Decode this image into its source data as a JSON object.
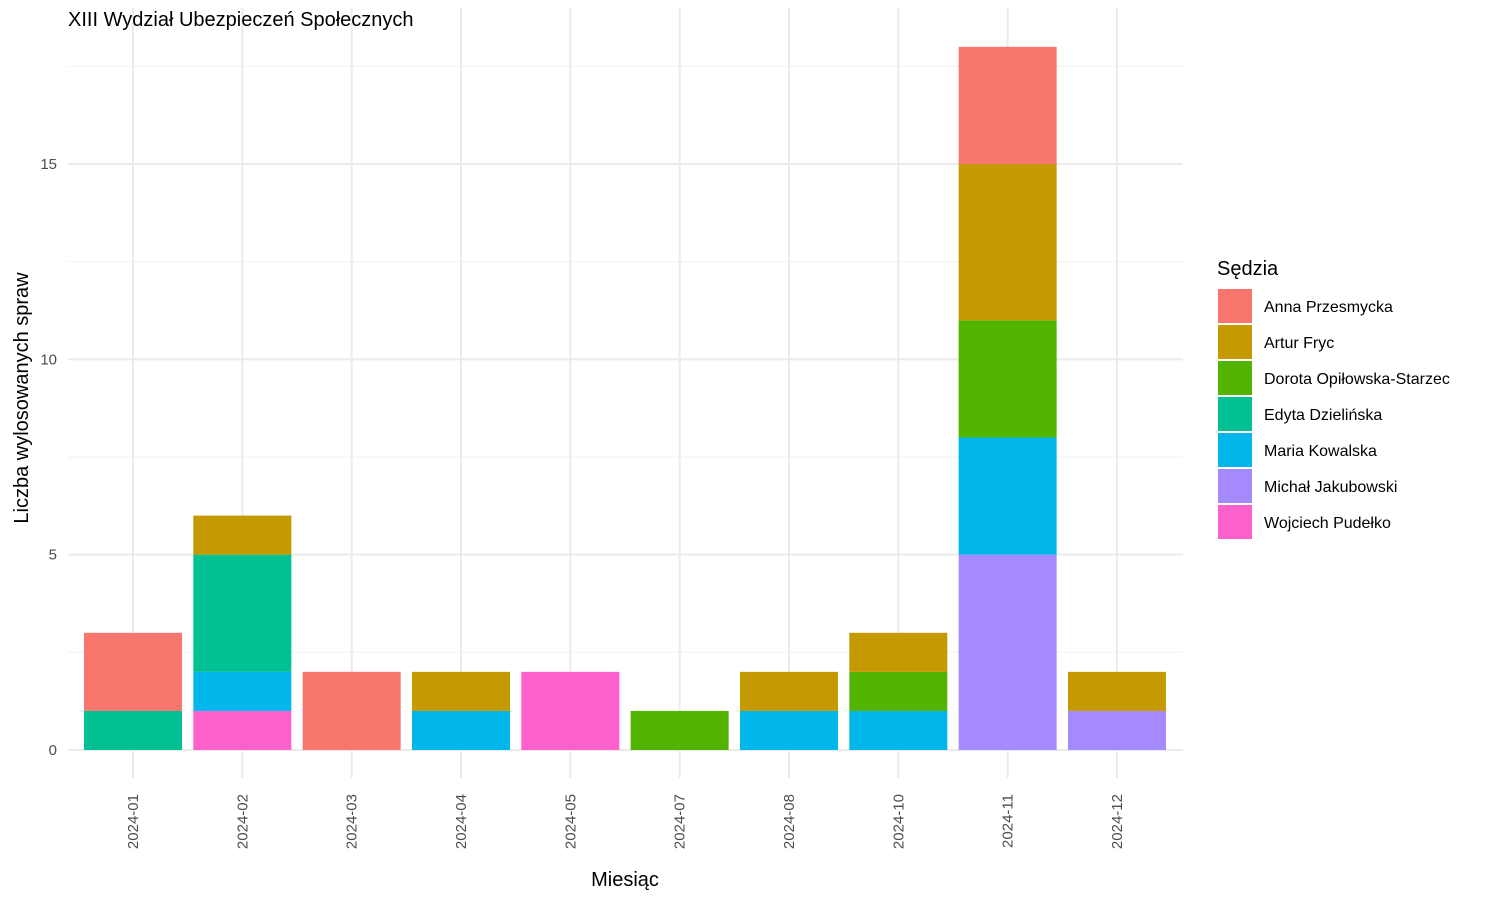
{
  "chart_data": {
    "type": "bar",
    "stacked": true,
    "title": "XIII Wydział Ubezpieczeń Społecznych",
    "xlabel": "Miesiąc",
    "ylabel": "Liczba wylosowanych spraw",
    "ylim": [
      0,
      18
    ],
    "yticks": [
      0,
      5,
      10,
      15
    ],
    "grid": true,
    "legend": {
      "title": "Sędzia",
      "position": "right"
    },
    "categories": [
      "2024-01",
      "2024-02",
      "2024-03",
      "2024-04",
      "2024-05",
      "2024-07",
      "2024-08",
      "2024-10",
      "2024-11",
      "2024-12"
    ],
    "series": [
      {
        "name": "Wojciech Pudełko",
        "color": "#FF61CC",
        "values": [
          0,
          1,
          0,
          0,
          2,
          0,
          0,
          0,
          0,
          0
        ]
      },
      {
        "name": "Michał Jakubowski",
        "color": "#A58AFF",
        "values": [
          0,
          0,
          0,
          0,
          0,
          0,
          0,
          0,
          5,
          1
        ]
      },
      {
        "name": "Maria Kowalska",
        "color": "#00B6EB",
        "values": [
          0,
          1,
          0,
          1,
          0,
          0,
          1,
          1,
          3,
          0
        ]
      },
      {
        "name": "Edyta Dzielińska",
        "color": "#00C094",
        "values": [
          1,
          3,
          0,
          0,
          0,
          0,
          0,
          0,
          0,
          0
        ]
      },
      {
        "name": "Dorota Opiłowska-Starzec",
        "color": "#53B400",
        "values": [
          0,
          0,
          0,
          0,
          0,
          1,
          0,
          1,
          3,
          0
        ]
      },
      {
        "name": "Artur Fryc",
        "color": "#C49A00",
        "values": [
          0,
          1,
          0,
          1,
          0,
          0,
          1,
          1,
          4,
          1
        ]
      },
      {
        "name": "Anna Przesmycka",
        "color": "#F8766D",
        "values": [
          2,
          0,
          2,
          0,
          0,
          0,
          0,
          0,
          3,
          0
        ]
      }
    ],
    "legend_order": [
      "Anna Przesmycka",
      "Artur Fryc",
      "Dorota Opiłowska-Starzec",
      "Edyta Dzielińska",
      "Maria Kowalska",
      "Michał Jakubowski",
      "Wojciech Pudełko"
    ]
  }
}
